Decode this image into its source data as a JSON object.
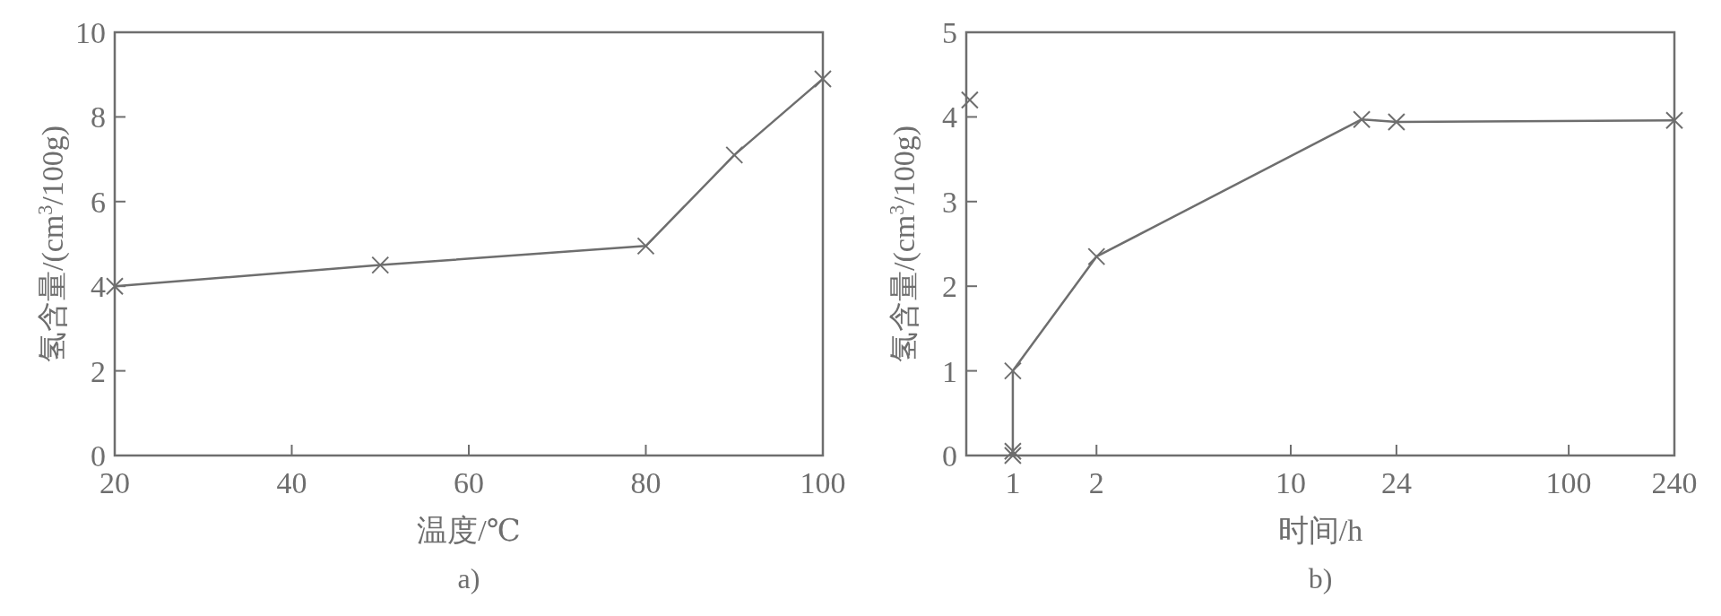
{
  "chart_data": [
    {
      "type": "line",
      "title": "a)",
      "xlabel": "温度/℃",
      "ylabel": "氢含量/(cm$^{3}$/100g)",
      "xlim": [
        20,
        100
      ],
      "ylim": [
        0,
        10
      ],
      "xticks": [
        20,
        40,
        60,
        80,
        100
      ],
      "yticks": [
        0,
        2,
        4,
        6,
        8,
        10
      ],
      "grid": false,
      "marker": "cross",
      "line_style": "solid",
      "series": [
        {
          "color": "#6e6e6e",
          "x": [
            20,
            50,
            80,
            90,
            100
          ],
          "values": [
            4.0,
            4.5,
            4.95,
            7.1,
            8.9
          ]
        }
      ]
    },
    {
      "type": "line",
      "title": "b)",
      "xlabel": "时间/h",
      "ylabel": "氢含量/(cm$^{3}$/100g)",
      "log": "x",
      "xlim": [
        0.68,
        240
      ],
      "ylim": [
        0,
        5
      ],
      "xticks": [
        1,
        2,
        10,
        24,
        100,
        240
      ],
      "yticks": [
        0,
        1,
        2,
        3,
        4,
        5
      ],
      "grid": false,
      "marker": "cross",
      "line_style": "solid",
      "series": [
        {
          "color": "#6e6e6e",
          "x": [
            1,
            1,
            1,
            2,
            18,
            24,
            240
          ],
          "values": [
            0,
            0.05,
            1.0,
            2.35,
            3.97,
            3.94,
            3.96
          ]
        },
        {
          "type": "scatter",
          "color": "#6e6e6e",
          "x": [
            0.7
          ],
          "values": [
            4.2
          ]
        }
      ]
    }
  ]
}
